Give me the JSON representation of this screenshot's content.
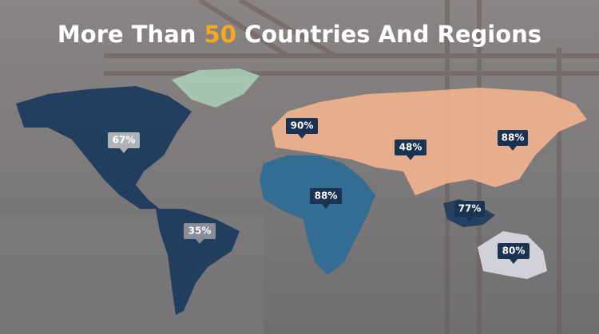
{
  "title": {
    "before": "More Than ",
    "highlight": "50",
    "after": " Countries And Regions"
  },
  "callouts": [
    {
      "label": "67%"
    },
    {
      "label": "35%"
    },
    {
      "label": "90%"
    },
    {
      "label": "88%"
    },
    {
      "label": "48%"
    },
    {
      "label": "88%"
    },
    {
      "label": "77%"
    },
    {
      "label": "80%"
    }
  ]
}
